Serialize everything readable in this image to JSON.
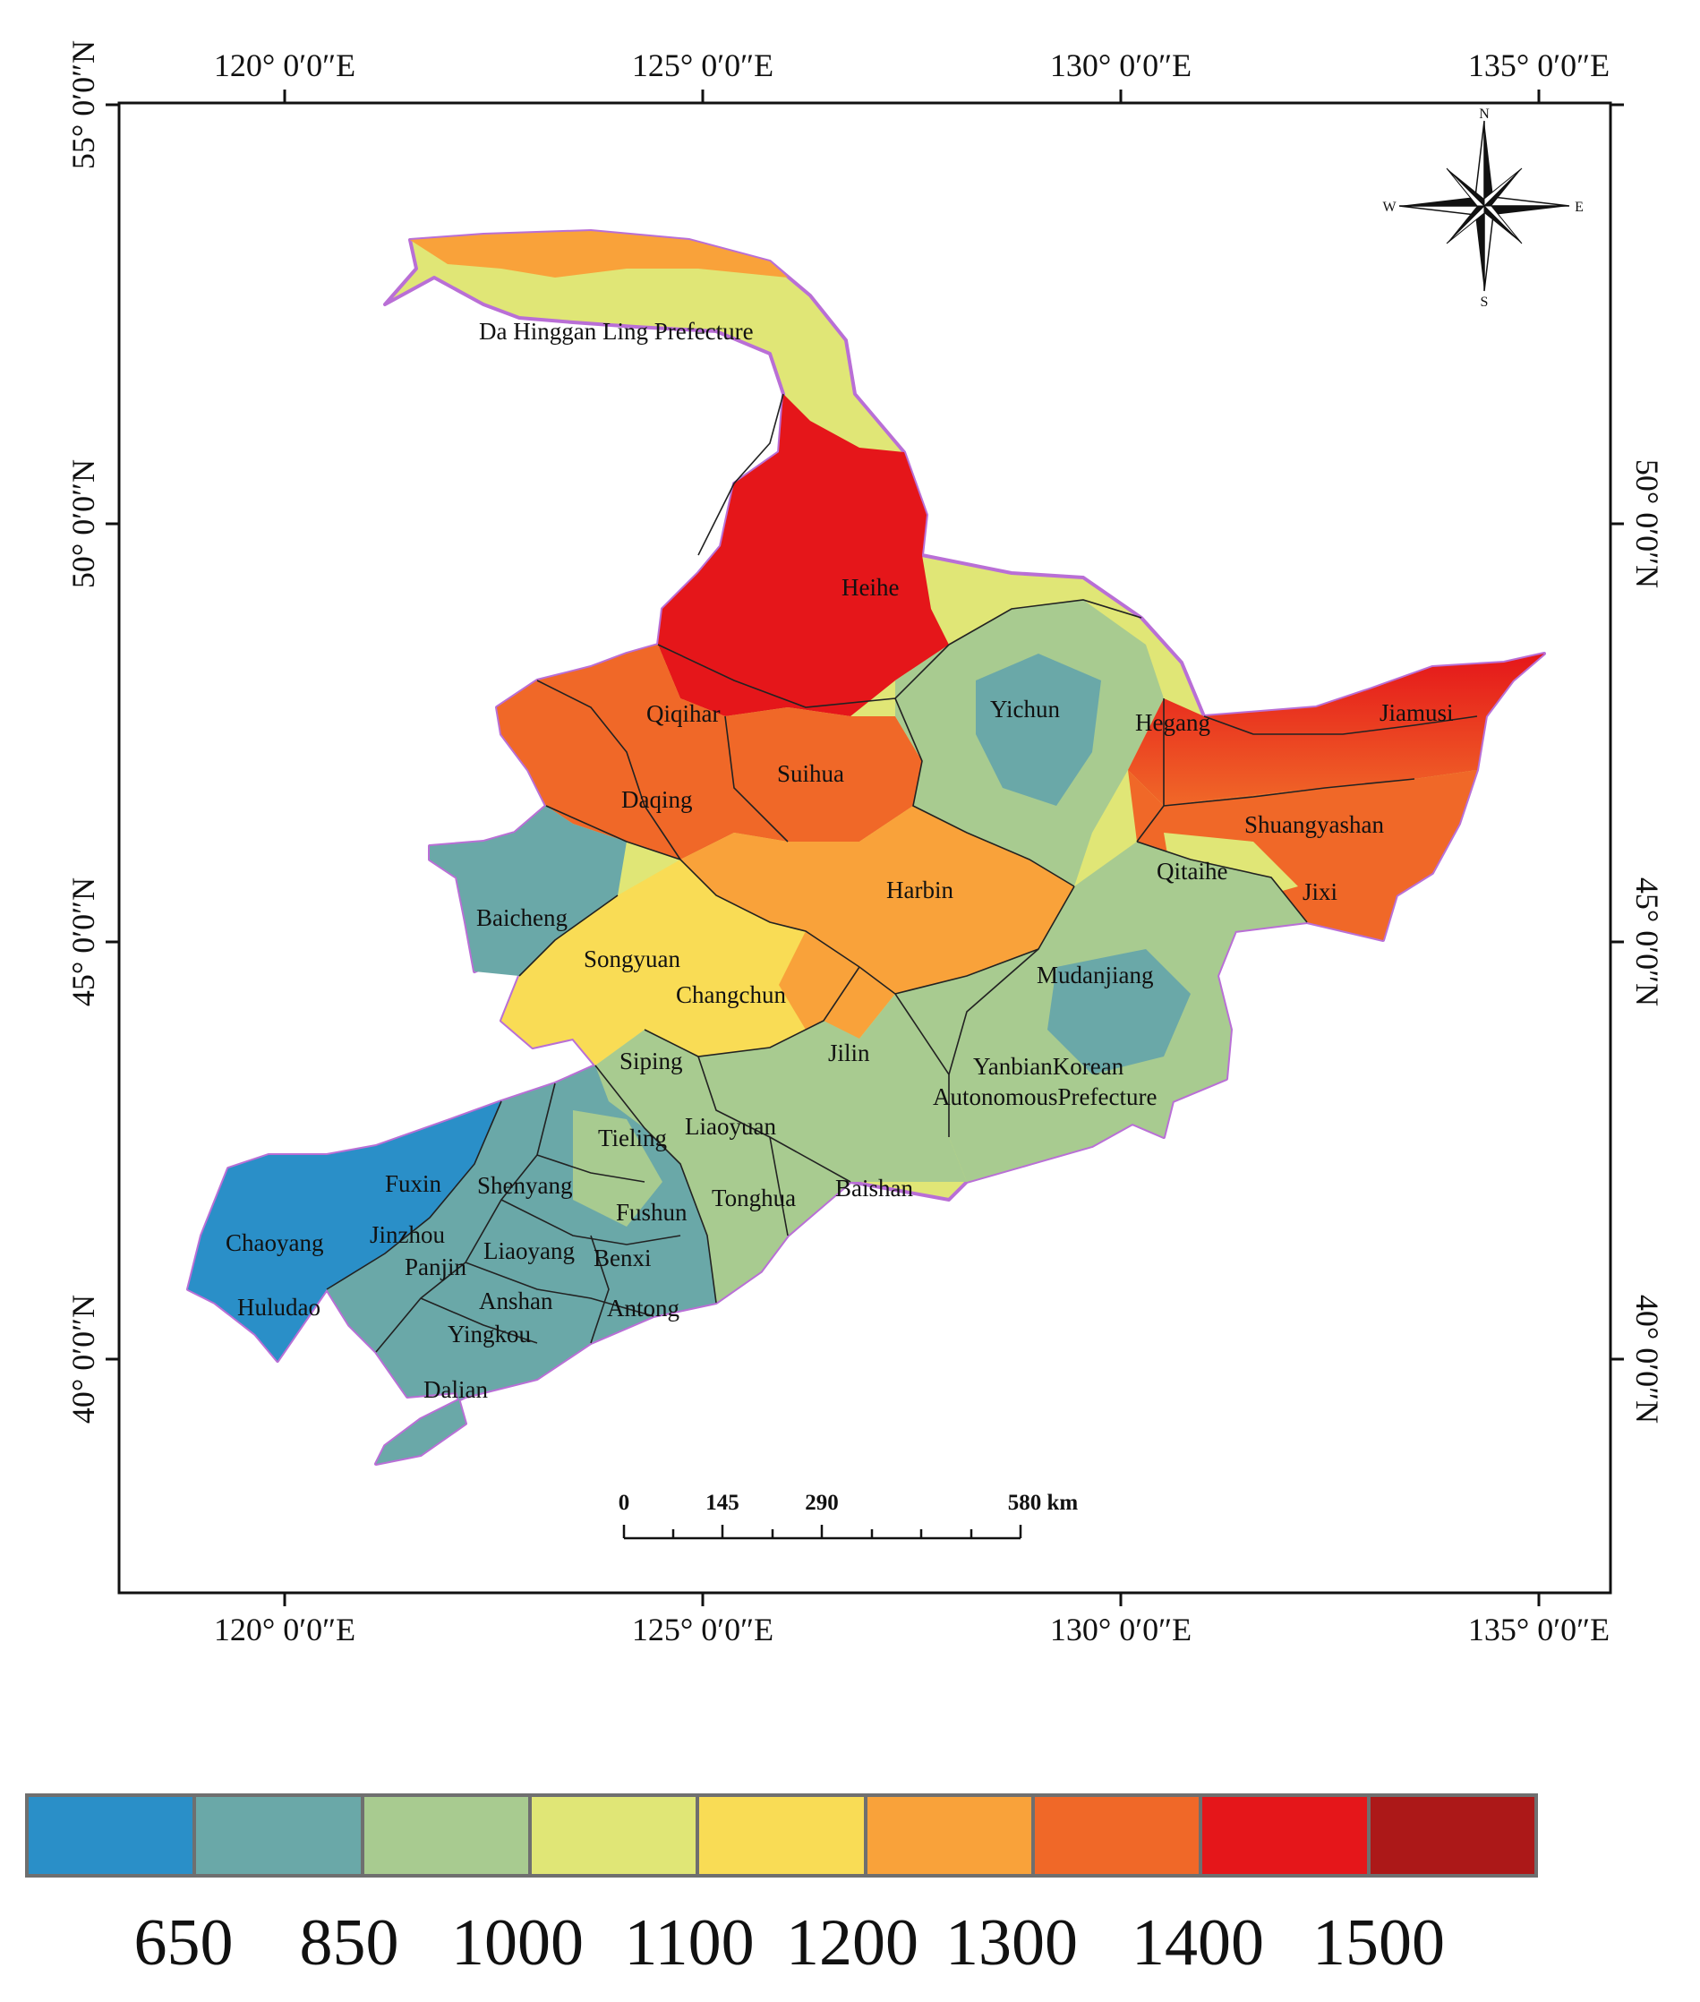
{
  "map": {
    "lon_labels": [
      "120° 0′0″E",
      "125° 0′0″E",
      "130° 0′0″E",
      "135° 0′0″E"
    ],
    "lat_labels": [
      "55° 0′0″N",
      "50° 0′0″N",
      "45° 0′0″N",
      "40° 0′0″N"
    ],
    "compass": {
      "n": "N",
      "s": "S",
      "e": "E",
      "w": "W"
    },
    "scale_bar": {
      "labels": [
        "0",
        "145",
        "290",
        "580 km"
      ]
    },
    "regions": [
      "Da Hinggan Ling Prefecture",
      "Heihe",
      "Qiqihar",
      "Yichun",
      "Hegang",
      "Jiamusi",
      "Suihua",
      "Daqing",
      "Shuangyashan",
      "Qitaihe",
      "Jixi",
      "Harbin",
      "Baicheng",
      "Songyuan",
      "Changchun",
      "Mudanjiang",
      "Siping",
      "Jilin",
      "YanbianKorean",
      "AutonomousPrefecture",
      "Tieling",
      "Liaoyuan",
      "Fuxin",
      "Shenyang",
      "Tonghua",
      "Baishan",
      "Fushun",
      "Chaoyang",
      "Jinzhou",
      "Liaoyang",
      "Benxi",
      "Panjin",
      "Huludao",
      "Anshan",
      "Antong",
      "Yingkou",
      "Dalian"
    ]
  },
  "legend": {
    "colors": [
      "#2a8fc8",
      "#6aa8a8",
      "#a8cb90",
      "#e0e676",
      "#f9dc55",
      "#f9a23a",
      "#f06828",
      "#e5161a",
      "#ac1818"
    ],
    "labels": [
      "650",
      "850",
      "1000",
      "1100",
      "1200",
      "1300",
      "1400",
      "1500"
    ]
  }
}
